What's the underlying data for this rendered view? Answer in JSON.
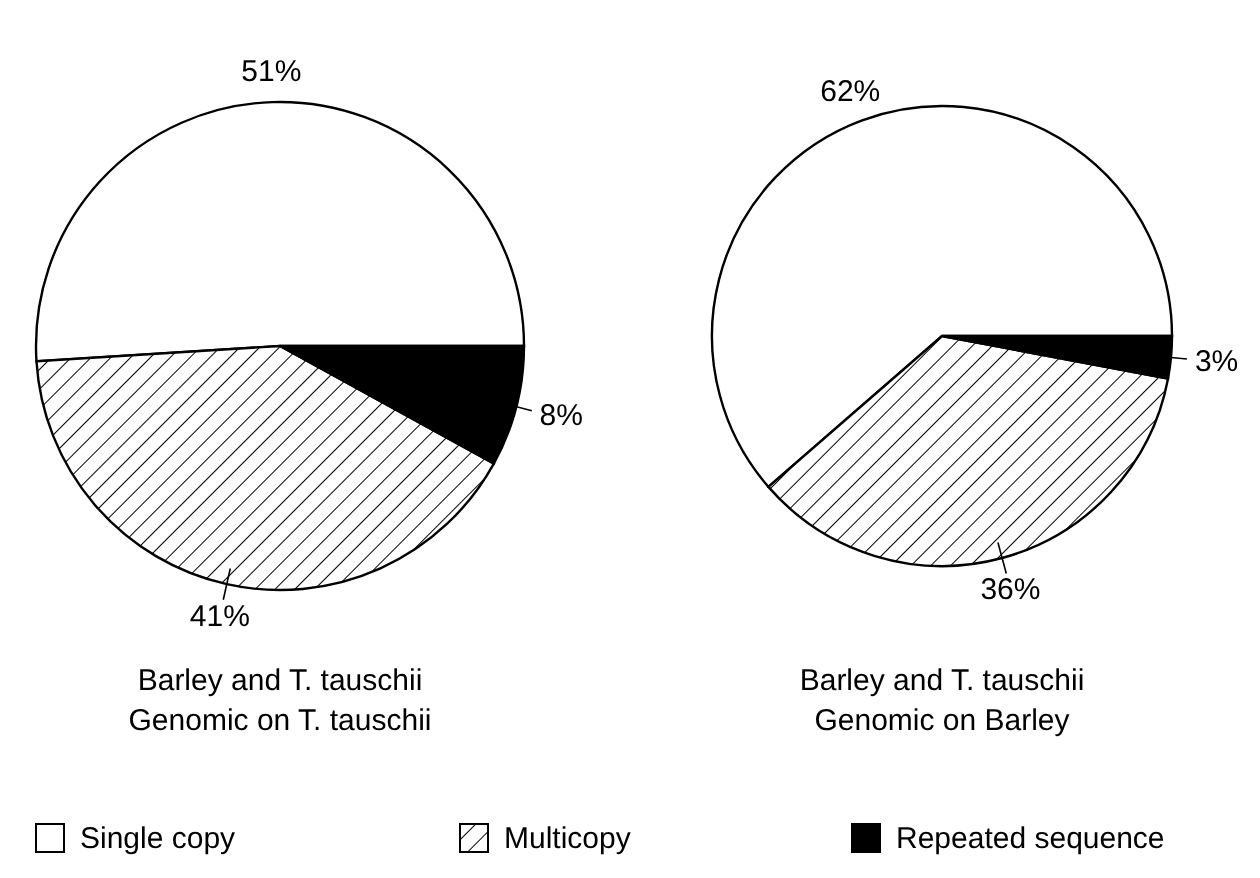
{
  "chart_data": [
    {
      "type": "pie",
      "title": "Barley and T. tauschii",
      "subtitle": "Genomic on T. tauschii",
      "categories": [
        "Single copy",
        "Multicopy",
        "Repeated sequence"
      ],
      "values": [
        51,
        41,
        8
      ],
      "value_labels": [
        "51%",
        "41%",
        "8%"
      ],
      "colors": [
        "#ffffff",
        "#000000",
        "#000000"
      ],
      "legend": "bottom"
    },
    {
      "type": "pie",
      "title": "Barley and T. tauschii",
      "subtitle": "Genomic on Barley",
      "categories": [
        null,
        null,
        null
      ],
      "values": [
        62,
        36,
        3
      ],
      "value_labels": [
        "62%",
        "36%",
        "3%"
      ],
      "colors": [
        "#ffffff",
        "#000000",
        "#000000"
      ]
    }
  ]
}
